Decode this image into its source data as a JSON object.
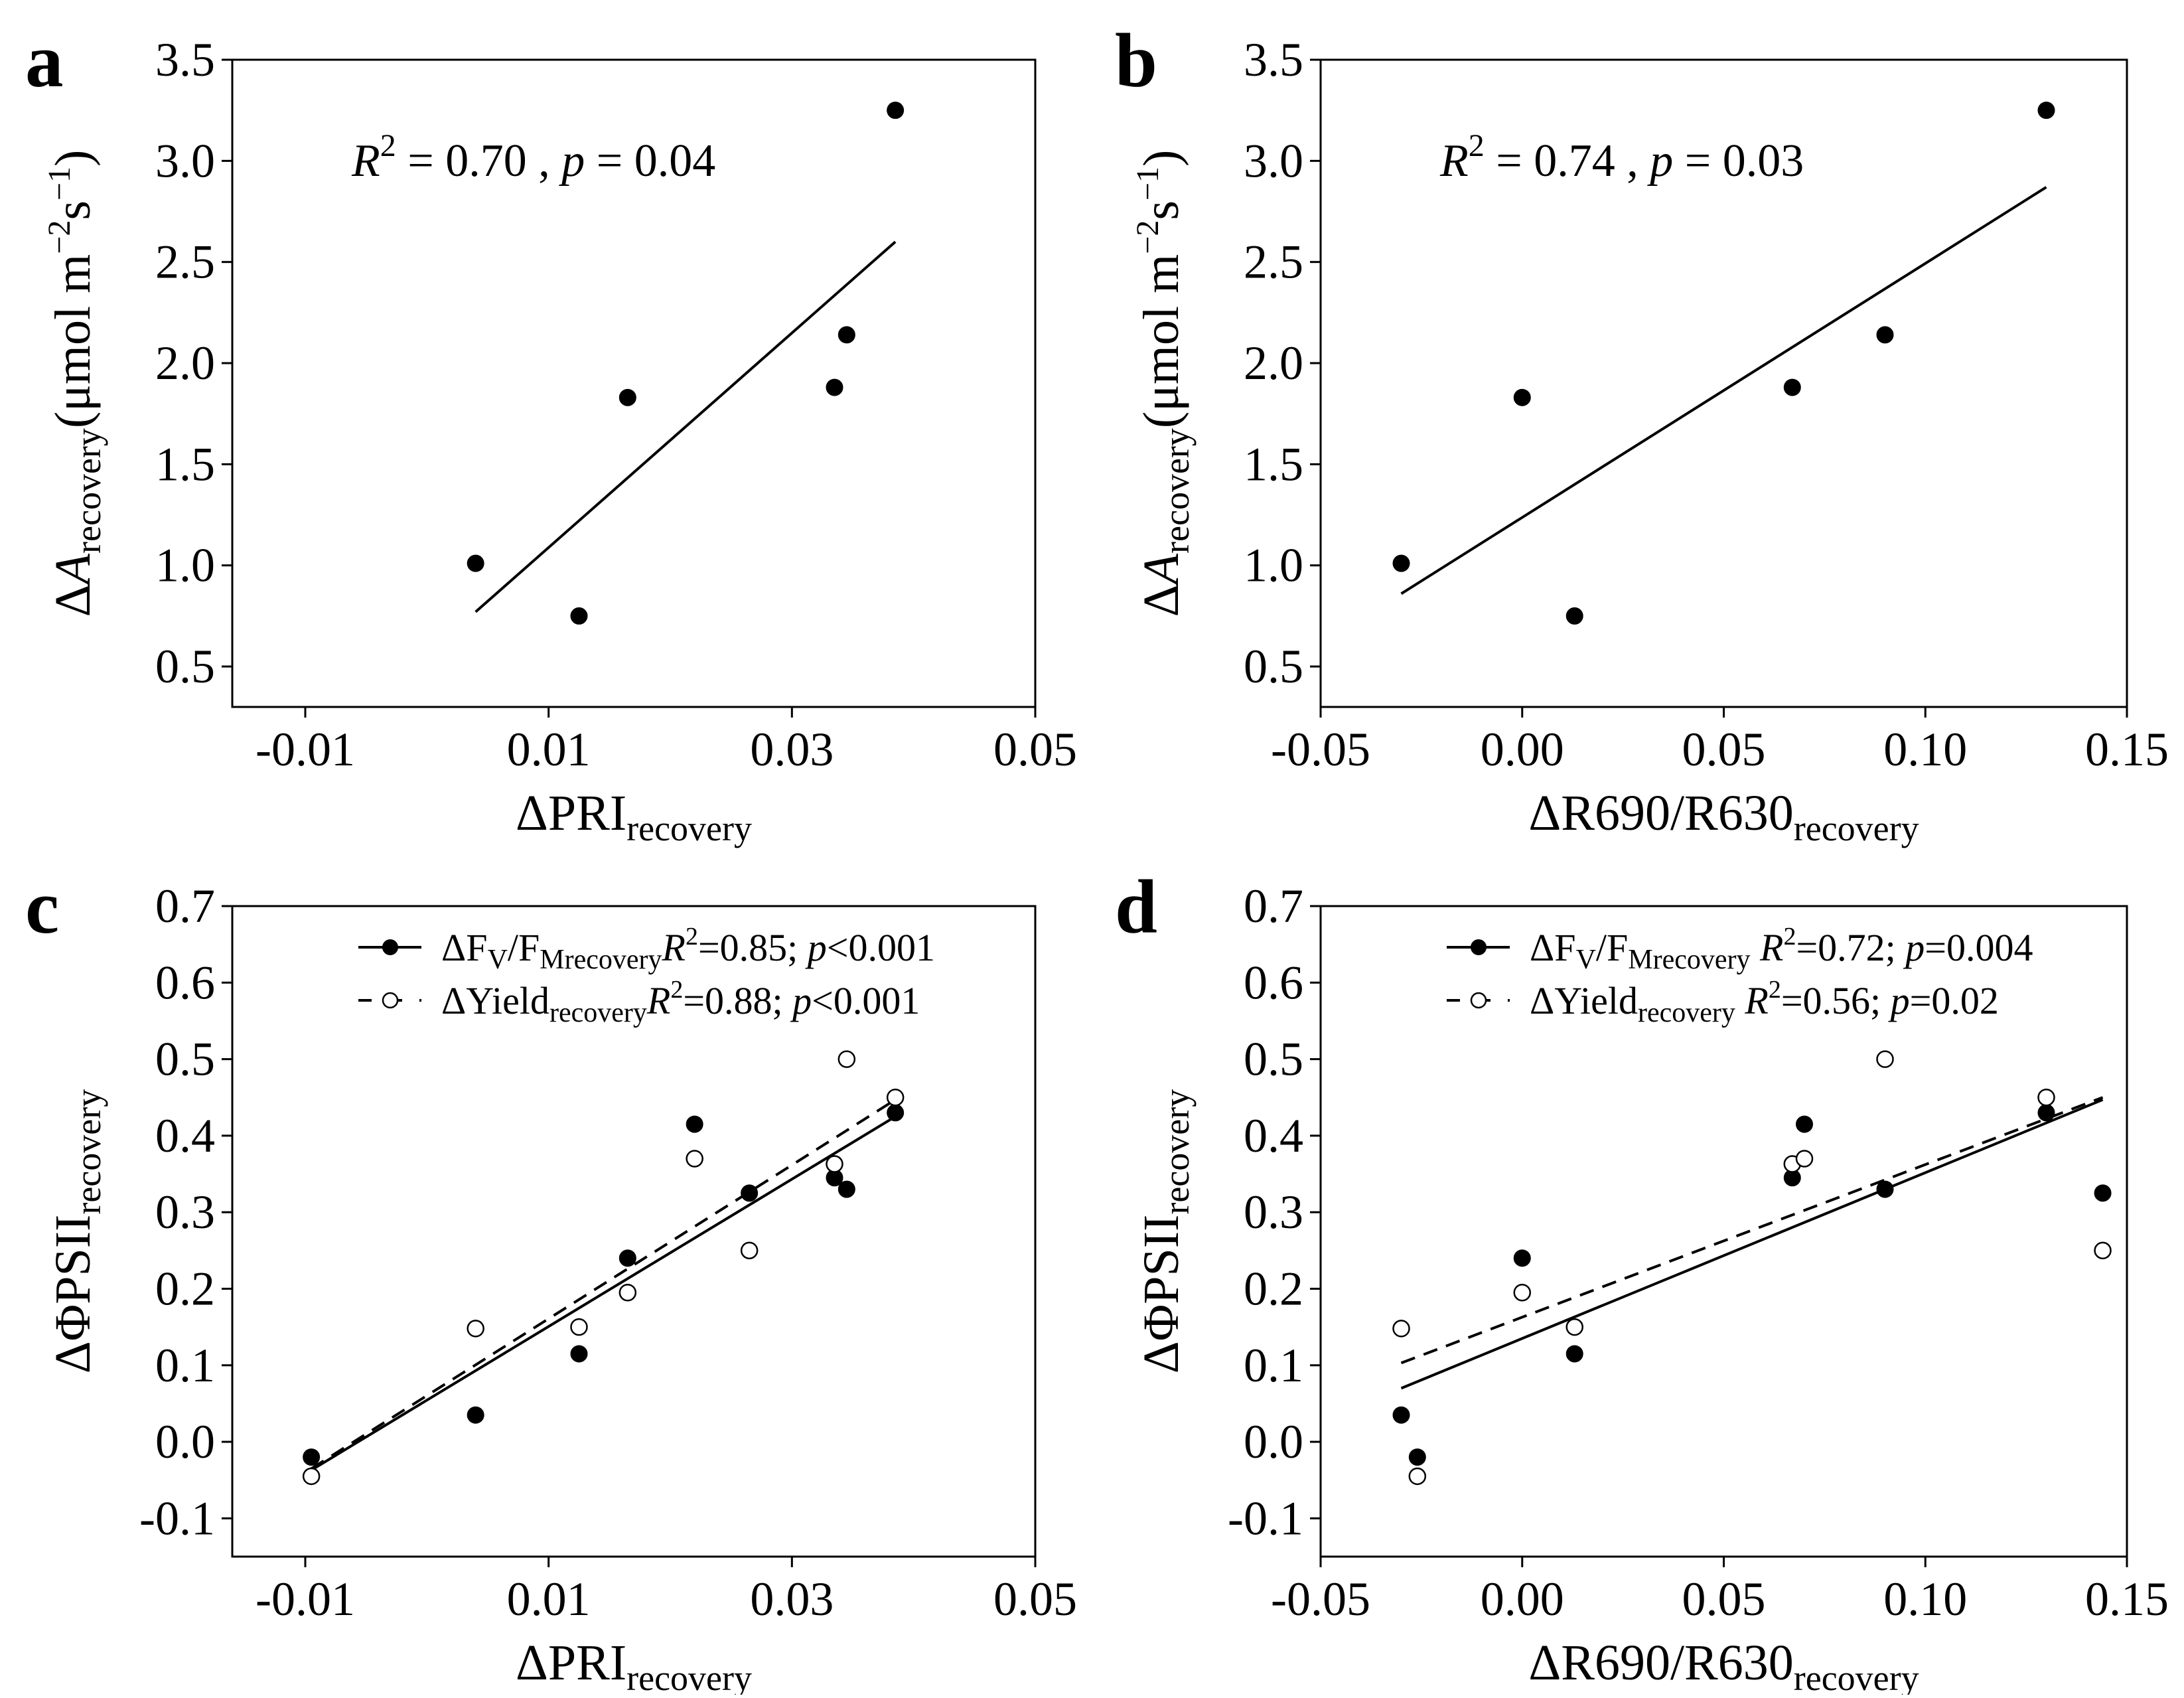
{
  "chart_data": [
    {
      "panel": "a",
      "type": "scatter",
      "x": [
        0.004,
        0.0125,
        0.0165,
        0.0335,
        0.0345,
        0.0385
      ],
      "series": [
        {
          "name": "ΔA recovery",
          "marker": "filled",
          "values": [
            1.01,
            0.75,
            1.83,
            1.88,
            2.14,
            3.25
          ]
        }
      ],
      "fits": [
        {
          "series": "ΔA recovery",
          "style": "solid",
          "x": [
            0.004,
            0.0385
          ],
          "y": [
            0.77,
            2.6
          ]
        }
      ],
      "annotation": {
        "r2_label": "R",
        "r2_sup": "2",
        "r2_text": " = 0.70 , ",
        "p_label": "p",
        "p_text": " = 0.04"
      },
      "xlim": [
        -0.016,
        0.05
      ],
      "ylim": [
        0.3,
        3.5
      ],
      "xticks": [
        -0.01,
        0.01,
        0.03,
        0.05
      ],
      "xtick_labels": [
        "-0.01",
        "0.01",
        "0.03",
        "0.05"
      ],
      "yticks": [
        0.5,
        1.0,
        1.5,
        2.0,
        2.5,
        3.0,
        3.5
      ],
      "ytick_labels": [
        "0.5",
        "1.0",
        "1.5",
        "2.0",
        "2.5",
        "3.0",
        "3.5"
      ],
      "xlabel": {
        "pre": "ΔPRI",
        "sub": "recovery"
      },
      "ylabel": {
        "delta": "Δ",
        "var": "A",
        "sub": "recovery",
        "unit_pre": "(μmol m",
        "sup1": "−2",
        "mid": "s",
        "sup2": "−1",
        "close": ")"
      }
    },
    {
      "panel": "b",
      "type": "scatter",
      "x": [
        -0.03,
        0.0,
        0.013,
        0.067,
        0.09,
        0.13
      ],
      "series": [
        {
          "name": "ΔA recovery",
          "marker": "filled",
          "values": [
            1.01,
            1.83,
            0.75,
            1.88,
            2.14,
            3.25
          ]
        }
      ],
      "fits": [
        {
          "series": "ΔA recovery",
          "style": "solid",
          "x": [
            -0.03,
            0.13
          ],
          "y": [
            0.86,
            2.87
          ]
        }
      ],
      "annotation": {
        "r2_label": "R",
        "r2_sup": "2",
        "r2_text": " = 0.74 , ",
        "p_label": "p",
        "p_text": " = 0.03"
      },
      "xlim": [
        -0.05,
        0.15
      ],
      "ylim": [
        0.3,
        3.5
      ],
      "xticks": [
        -0.05,
        0.0,
        0.05,
        0.1,
        0.15
      ],
      "xtick_labels": [
        "-0.05",
        "0.00",
        "0.05",
        "0.10",
        "0.15"
      ],
      "yticks": [
        0.5,
        1.0,
        1.5,
        2.0,
        2.5,
        3.0,
        3.5
      ],
      "ytick_labels": [
        "0.5",
        "1.0",
        "1.5",
        "2.0",
        "2.5",
        "3.0",
        "3.5"
      ],
      "xlabel": {
        "pre": "ΔR690/R630",
        "sub": "recovery"
      },
      "ylabel": {
        "delta": "Δ",
        "var": "A",
        "sub": "recovery",
        "unit_pre": "(μmol m",
        "sup1": "−2",
        "mid": "s",
        "sup2": "−1",
        "close": ")"
      }
    },
    {
      "panel": "c",
      "type": "scatter",
      "x": [
        -0.0095,
        0.004,
        0.0125,
        0.0165,
        0.022,
        0.0265,
        0.0335,
        0.0345,
        0.0385
      ],
      "series": [
        {
          "name": "ΔFv/Fm recovery",
          "marker": "filled",
          "values": [
            -0.02,
            0.035,
            0.115,
            0.24,
            0.415,
            0.325,
            0.345,
            0.33,
            0.43
          ]
        },
        {
          "name": "ΔYield recovery",
          "marker": "open",
          "values": [
            -0.045,
            0.148,
            0.15,
            0.195,
            0.37,
            0.25,
            0.363,
            0.5,
            0.45
          ]
        }
      ],
      "fits": [
        {
          "series": "ΔFv/Fm recovery",
          "style": "solid",
          "x": [
            -0.0095,
            0.0385
          ],
          "y": [
            -0.037,
            0.425
          ]
        },
        {
          "series": "ΔYield recovery",
          "style": "dashed",
          "x": [
            -0.0095,
            0.0385
          ],
          "y": [
            -0.035,
            0.447
          ]
        }
      ],
      "legend": [
        {
          "style": "solid",
          "marker": "filled",
          "pre": "ΔF",
          "s1": "V",
          "mid": "/F",
          "s2": "Mrecovery",
          "r": "R",
          "rsup": "2",
          "stat": "=0.85;  ",
          "p": "p",
          "pstat": "<0.001"
        },
        {
          "style": "dashed",
          "marker": "open",
          "pre": "ΔYield",
          "s1": "recovery",
          "mid": "",
          "s2": "",
          "r": "R",
          "rsup": "2",
          "stat": "=0.88;  ",
          "p": "p",
          "pstat": "<0.001"
        }
      ],
      "xlim": [
        -0.016,
        0.05
      ],
      "ylim": [
        -0.15,
        0.7
      ],
      "xticks": [
        -0.01,
        0.01,
        0.03,
        0.05
      ],
      "xtick_labels": [
        "-0.01",
        "0.01",
        "0.03",
        "0.05"
      ],
      "yticks": [
        -0.1,
        0.0,
        0.1,
        0.2,
        0.3,
        0.4,
        0.5,
        0.6,
        0.7
      ],
      "ytick_labels": [
        "-0.1",
        "0.0",
        "0.1",
        "0.2",
        "0.3",
        "0.4",
        "0.5",
        "0.6",
        "0.7"
      ],
      "xlabel": {
        "pre": "ΔPRI",
        "sub": "recovery"
      },
      "ylabel": {
        "pre": "ΔΦPSII",
        "sub": "recovery"
      }
    },
    {
      "panel": "d",
      "type": "scatter",
      "x": [
        -0.03,
        -0.026,
        0.0,
        0.013,
        0.067,
        0.07,
        0.09,
        0.13,
        0.144
      ],
      "series": [
        {
          "name": "ΔFv/Fm recovery",
          "marker": "filled",
          "values": [
            0.035,
            -0.02,
            0.24,
            0.115,
            0.345,
            0.415,
            0.33,
            0.43,
            0.325
          ]
        },
        {
          "name": "ΔYield recovery",
          "marker": "open",
          "values": [
            0.148,
            -0.045,
            0.195,
            0.15,
            0.363,
            0.37,
            0.5,
            0.45,
            0.25
          ]
        }
      ],
      "fits": [
        {
          "series": "ΔFv/Fm recovery",
          "style": "solid",
          "x": [
            -0.03,
            0.144
          ],
          "y": [
            0.07,
            0.447
          ]
        },
        {
          "series": "ΔYield recovery",
          "style": "dashed",
          "x": [
            -0.03,
            0.144
          ],
          "y": [
            0.103,
            0.45
          ]
        }
      ],
      "legend": [
        {
          "style": "solid",
          "marker": "filled",
          "pre": "ΔF",
          "s1": "V",
          "mid": "/F",
          "s2": "Mrecovery",
          "r": " R",
          "rsup": "2",
          "stat": "=0.72;  ",
          "p": "p",
          "pstat": "=0.004"
        },
        {
          "style": "dashed",
          "marker": "open",
          "pre": "ΔYield",
          "s1": "recovery",
          "mid": "",
          "s2": "",
          "r": "     R",
          "rsup": "2",
          "stat": "=0.56;  ",
          "p": "p",
          "pstat": "=0.02"
        }
      ],
      "xlim": [
        -0.05,
        0.15
      ],
      "ylim": [
        -0.15,
        0.7
      ],
      "xticks": [
        -0.05,
        0.0,
        0.05,
        0.1,
        0.15
      ],
      "xtick_labels": [
        "-0.05",
        "0.00",
        "0.05",
        "0.10",
        "0.15"
      ],
      "yticks": [
        -0.1,
        0.0,
        0.1,
        0.2,
        0.3,
        0.4,
        0.5,
        0.6,
        0.7
      ],
      "ytick_labels": [
        "-0.1",
        "0.0",
        "0.1",
        "0.2",
        "0.3",
        "0.4",
        "0.5",
        "0.6",
        "0.7"
      ],
      "xlabel": {
        "pre": "ΔR690/R630",
        "sub": "recovery"
      },
      "ylabel": {
        "pre": "ΔΦPSII",
        "sub": "recovery"
      }
    }
  ]
}
